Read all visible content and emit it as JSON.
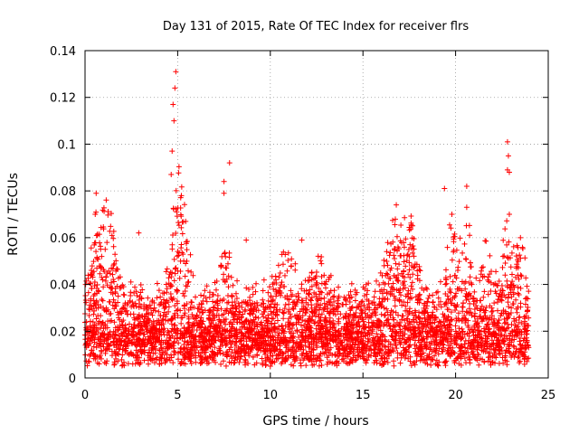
{
  "chart_data": {
    "type": "scatter",
    "title": "Day 131 of 2015, Rate Of TEC Index for receiver flrs",
    "xlabel": "GPS time / hours",
    "ylabel": "ROTI / TECUs",
    "xlim": [
      0,
      25
    ],
    "ylim": [
      0,
      0.14
    ],
    "x_ticks": [
      0,
      5,
      10,
      15,
      20,
      25
    ],
    "x_tick_labels": [
      "0",
      "5",
      "10",
      "15",
      "20",
      "25"
    ],
    "y_ticks": [
      0,
      0.02,
      0.04,
      0.06,
      0.08,
      0.1,
      0.12,
      0.14
    ],
    "y_tick_labels": [
      "0",
      "0.02",
      "0.04",
      "0.06",
      "0.08",
      "0.1",
      "0.12",
      "0.14"
    ],
    "grid": true,
    "marker": "+",
    "marker_color": "#ff0000",
    "series": [
      {
        "name": "ROTI",
        "x_range": [
          0,
          23.95
        ],
        "baseline_range": [
          0.005,
          0.02
        ],
        "notable_points": [
          {
            "x": 4.9,
            "y": 0.131
          },
          {
            "x": 4.85,
            "y": 0.124
          },
          {
            "x": 4.75,
            "y": 0.117
          },
          {
            "x": 4.8,
            "y": 0.11
          },
          {
            "x": 4.7,
            "y": 0.097
          },
          {
            "x": 4.65,
            "y": 0.087
          },
          {
            "x": 5.2,
            "y": 0.078
          },
          {
            "x": 7.8,
            "y": 0.092
          },
          {
            "x": 7.5,
            "y": 0.084
          },
          {
            "x": 7.5,
            "y": 0.079
          },
          {
            "x": 0.6,
            "y": 0.079
          },
          {
            "x": 0.55,
            "y": 0.07
          },
          {
            "x": 2.9,
            "y": 0.062
          },
          {
            "x": 19.4,
            "y": 0.081
          },
          {
            "x": 20.6,
            "y": 0.082
          },
          {
            "x": 20.6,
            "y": 0.073
          },
          {
            "x": 22.8,
            "y": 0.101
          },
          {
            "x": 22.85,
            "y": 0.095
          },
          {
            "x": 22.8,
            "y": 0.089
          },
          {
            "x": 22.9,
            "y": 0.088
          },
          {
            "x": 22.9,
            "y": 0.07
          },
          {
            "x": 23.5,
            "y": 0.06
          },
          {
            "x": 16.8,
            "y": 0.074
          },
          {
            "x": 19.8,
            "y": 0.07
          },
          {
            "x": 8.7,
            "y": 0.059
          },
          {
            "x": 11.7,
            "y": 0.059
          }
        ]
      }
    ]
  }
}
